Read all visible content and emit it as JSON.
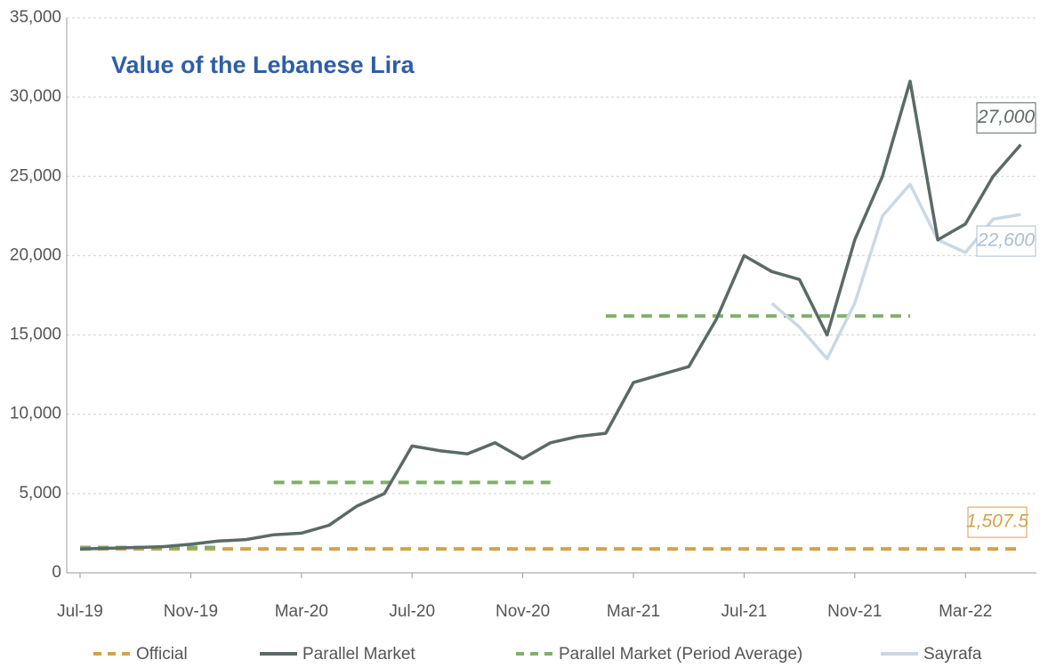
{
  "chart_data": {
    "type": "line",
    "title": "Value of the Lebanese Lira",
    "x": [
      "2019-07",
      "2019-08",
      "2019-09",
      "2019-10",
      "2019-11",
      "2019-12",
      "2020-01",
      "2020-02",
      "2020-03",
      "2020-04",
      "2020-05",
      "2020-06",
      "2020-07",
      "2020-08",
      "2020-09",
      "2020-10",
      "2020-11",
      "2020-12",
      "2021-01",
      "2021-02",
      "2021-03",
      "2021-04",
      "2021-05",
      "2021-06",
      "2021-07",
      "2021-08",
      "2021-09",
      "2021-10",
      "2021-11",
      "2021-12",
      "2022-01",
      "2022-02",
      "2022-03",
      "2022-04",
      "2022-05"
    ],
    "series": [
      {
        "name": "Official",
        "color": "#d4a24c",
        "dash": true,
        "values": [
          1507.5,
          1507.5,
          1507.5,
          1507.5,
          1507.5,
          1507.5,
          1507.5,
          1507.5,
          1507.5,
          1507.5,
          1507.5,
          1507.5,
          1507.5,
          1507.5,
          1507.5,
          1507.5,
          1507.5,
          1507.5,
          1507.5,
          1507.5,
          1507.5,
          1507.5,
          1507.5,
          1507.5,
          1507.5,
          1507.5,
          1507.5,
          1507.5,
          1507.5,
          1507.5,
          1507.5,
          1507.5,
          1507.5,
          1507.5,
          1507.5
        ]
      },
      {
        "name": "Parallel Market",
        "color": "#5b6a67",
        "dash": false,
        "values": [
          1500,
          1550,
          1600,
          1650,
          1800,
          2000,
          2100,
          2400,
          2500,
          3000,
          4200,
          5000,
          8000,
          7700,
          7500,
          8200,
          7200,
          8200,
          8600,
          8800,
          12000,
          12500,
          13000,
          16000,
          20000,
          19000,
          18500,
          15000,
          21000,
          25000,
          31000,
          21000,
          22000,
          25000,
          27000
        ]
      },
      {
        "name": "Parallel Market (Period Average)",
        "color": "#7fb069",
        "dash": true,
        "values": [
          1600,
          1600,
          1600,
          1600,
          1600,
          1600,
          null,
          5700,
          5700,
          5700,
          5700,
          5700,
          5700,
          5700,
          5700,
          5700,
          5700,
          5700,
          null,
          16200,
          16200,
          16200,
          16200,
          16200,
          16200,
          16200,
          16200,
          16200,
          16200,
          16200,
          16200,
          null,
          null,
          null,
          null
        ]
      },
      {
        "name": "Sayrafa",
        "color": "#c9d8e4",
        "dash": false,
        "values": [
          null,
          null,
          null,
          null,
          null,
          null,
          null,
          null,
          null,
          null,
          null,
          null,
          null,
          null,
          null,
          null,
          null,
          null,
          null,
          null,
          null,
          null,
          null,
          null,
          null,
          17000,
          15500,
          13500,
          17000,
          22500,
          24500,
          21000,
          20200,
          22300,
          22600
        ]
      }
    ],
    "annotations": [
      {
        "text": "27,000",
        "value": 27000,
        "color": "#5b6a67"
      },
      {
        "text": "22,600",
        "value": 22600,
        "color": "#a9bfd0"
      },
      {
        "text": "1,507.5",
        "value": 1507.5,
        "color": "#d4a24c"
      }
    ],
    "ylim": [
      0,
      35000
    ],
    "yticks": [
      0,
      {
        "value": 5000,
        "label": "5,000"
      },
      {
        "value": 10000,
        "label": "10,000"
      },
      {
        "value": 15000,
        "label": "15,000"
      },
      {
        "value": 20000,
        "label": "20,000"
      },
      {
        "value": 25000,
        "label": "25,000"
      },
      {
        "value": 30000,
        "label": "30,000"
      },
      {
        "value": 35000,
        "label": "35,000"
      }
    ],
    "xticks": [
      {
        "value": "2019-07",
        "label": "Jul-19"
      },
      {
        "value": "2019-11",
        "label": "Nov-19"
      },
      {
        "value": "2020-03",
        "label": "Mar-20"
      },
      {
        "value": "2020-07",
        "label": "Jul-20"
      },
      {
        "value": "2020-11",
        "label": "Nov-20"
      },
      {
        "value": "2021-03",
        "label": "Mar-21"
      },
      {
        "value": "2021-07",
        "label": "Jul-21"
      },
      {
        "value": "2021-11",
        "label": "Nov-21"
      },
      {
        "value": "2022-03",
        "label": "Mar-22"
      }
    ],
    "grid": true
  }
}
